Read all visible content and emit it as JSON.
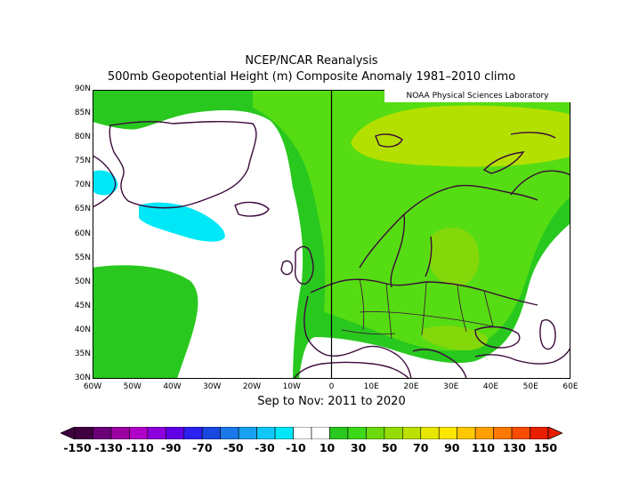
{
  "title": {
    "line1": "NCEP/NCAR Reanalysis",
    "line2": "500mb Geopotential Height (m) Composite Anomaly 1981–2010 climo"
  },
  "subtitle": "Sep to Nov: 2011 to 2020",
  "credit": "NOAA Physical Sciences Laboratory",
  "map": {
    "projection": "equirectangular",
    "extent": {
      "lon": [
        -60,
        60
      ],
      "lat": [
        30,
        90
      ]
    },
    "lat_ticks": [
      "90N",
      "85N",
      "80N",
      "75N",
      "70N",
      "65N",
      "60N",
      "55N",
      "50N",
      "45N",
      "40N",
      "35N",
      "30N"
    ],
    "lon_ticks": [
      "60W",
      "50W",
      "40W",
      "30W",
      "20W",
      "10W",
      "0",
      "10E",
      "20E",
      "30E",
      "40E",
      "50E",
      "60E"
    ],
    "prime_meridian_line": true
  },
  "colorbar": {
    "labels": [
      "-150",
      "-130",
      "-110",
      "-90",
      "-70",
      "-50",
      "-30",
      "-10",
      "10",
      "30",
      "50",
      "70",
      "90",
      "110",
      "130",
      "150"
    ],
    "colors": [
      "#3f0040",
      "#6a0078",
      "#9b00a0",
      "#b000c8",
      "#8c00dc",
      "#6000e6",
      "#2a20f0",
      "#1848e0",
      "#1a78e8",
      "#1aa0f0",
      "#10c8f8",
      "#00e8f8",
      "#ffffff",
      "#ffffff",
      "#28c81e",
      "#3cd81a",
      "#6cd80e",
      "#94dc08",
      "#bce000",
      "#e6e600",
      "#ffe600",
      "#ffc800",
      "#ffa000",
      "#ff7800",
      "#f84c00",
      "#e81e00"
    ],
    "end_left_color": "#3f0040",
    "end_right_color": "#e81e00"
  },
  "fill_colors": {
    "light_green": "#56dc12",
    "green": "#28c81e",
    "yellow_green": "#b4e000",
    "lime": "#84d80a",
    "cyan": "#00e8f8",
    "coast": "#3a0a3a"
  }
}
